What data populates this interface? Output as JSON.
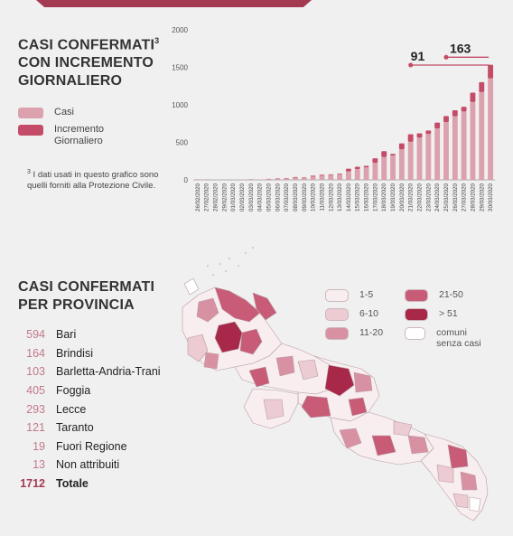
{
  "header": {
    "title_line1": "CASI CONFERMATI",
    "title_sup": "3",
    "title_line2": "CON INCREMENTO",
    "title_line3": "GIORNALIERO"
  },
  "legend1": [
    {
      "label": "Casi",
      "color": "#dba1ac"
    },
    {
      "label": "Incremento Giornaliero",
      "color": "#c44c68"
    }
  ],
  "note": {
    "sup": "3",
    "text": "I dati usati in questo grafico sono quelli forniti alla Protezione Civile."
  },
  "chart_data": {
    "type": "bar",
    "categories": [
      "26/02/2020",
      "27/02/2020",
      "28/02/2020",
      "29/02/2020",
      "01/03/2020",
      "02/03/2020",
      "03/03/2020",
      "04/03/2020",
      "05/03/2020",
      "06/03/2020",
      "07/03/2020",
      "08/03/2020",
      "09/03/2020",
      "10/03/2020",
      "11/03/2020",
      "12/03/2020",
      "13/03/2020",
      "14/03/2020",
      "15/03/2020",
      "16/03/2020",
      "17/03/2020",
      "18/03/2020",
      "19/03/2020",
      "20/03/2020",
      "21/03/2020",
      "22/03/2020",
      "23/03/2020",
      "24/03/2020",
      "25/03/2020",
      "26/03/2020",
      "27/03/2020",
      "28/03/2020",
      "29/03/2020",
      "30/03/2020"
    ],
    "series": [
      {
        "name": "Casi",
        "values": [
          2,
          3,
          3,
          3,
          3,
          3,
          5,
          5,
          9,
          14,
          19,
          28,
          32,
          44,
          56,
          65,
          75,
          112,
          143,
          165,
          226,
          304,
          325,
          406,
          507,
          564,
          611,
          687,
          769,
          848,
          911,
          1037,
          1170,
          1352
        ]
      },
      {
        "name": "Incremento Giornaliero",
        "values": [
          1,
          1,
          0,
          0,
          0,
          0,
          2,
          0,
          4,
          5,
          5,
          9,
          4,
          12,
          12,
          9,
          10,
          37,
          31,
          22,
          61,
          78,
          21,
          81,
          101,
          57,
          47,
          76,
          82,
          79,
          63,
          126,
          133,
          182
        ]
      }
    ],
    "ylim": [
      0,
      2000
    ],
    "yticks": [
      0,
      500,
      1000,
      1500,
      2000
    ],
    "annotations": [
      {
        "label": "91",
        "category": "21/03/2020",
        "value": 1530
      },
      {
        "label": "163",
        "category": "25/03/2020",
        "value": 1635
      }
    ],
    "colors": {
      "cases": "#dba1ac",
      "increment": "#c44c68",
      "annotation": "#c44c68"
    }
  },
  "provinces": {
    "title_line1": "CASI CONFERMATI",
    "title_line2": "PER PROVINCIA",
    "items": [
      {
        "value": "594",
        "name": "Bari"
      },
      {
        "value": "164",
        "name": "Brindisi"
      },
      {
        "value": "103",
        "name": "Barletta-Andria-Trani"
      },
      {
        "value": "405",
        "name": "Foggia"
      },
      {
        "value": "293",
        "name": "Lecce"
      },
      {
        "value": "121",
        "name": "Taranto"
      },
      {
        "value": "19",
        "name": "Fuori Regione"
      },
      {
        "value": "13",
        "name": "Non attribuiti"
      }
    ],
    "total": {
      "value": "1712",
      "name": "Totale"
    }
  },
  "map_legend": [
    {
      "label": "1-5",
      "color": "#f8eeef"
    },
    {
      "label": "21-50",
      "color": "#c85c77"
    },
    {
      "label": "6-10",
      "color": "#eccbd2"
    },
    {
      "label": "> 51",
      "color": "#a8284a"
    },
    {
      "label": "11-20",
      "color": "#d891a3"
    },
    {
      "label": "comuni senza casi",
      "color": "#ffffff"
    }
  ]
}
